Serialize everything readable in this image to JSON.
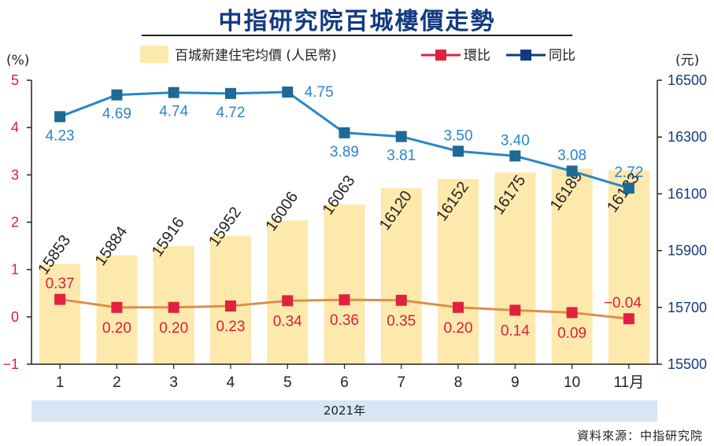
{
  "title": "中指研究院百城樓價走勢",
  "source": "資料來源：中指研究院",
  "year_label": "2021年",
  "left_axis_unit": "(%)",
  "right_axis_unit": "(元)",
  "x_suffix": "月",
  "legend": {
    "bar": "百城新建住宅均價 (人民幣)",
    "mom": "環比",
    "yoy": "同比"
  },
  "colors": {
    "bar": "#fde9ac",
    "mom_line": "#d9914a",
    "mom_marker": "#e0223f",
    "mom_text": "#d61f3c",
    "yoy_line": "#2a86c8",
    "yoy_marker": "#1d6a93",
    "yoy_text": "#2a86c8",
    "left_axis": "#d61f3c",
    "right_axis": "#123a82",
    "title": "#123a82"
  },
  "chart_data": {
    "type": "bar",
    "title": "中指研究院百城樓價走勢",
    "categories": [
      "1",
      "2",
      "3",
      "4",
      "5",
      "6",
      "7",
      "8",
      "9",
      "10",
      "11"
    ],
    "series": [
      {
        "name": "百城新建住宅均價 (人民幣)",
        "type": "bar",
        "axis": "right",
        "values": [
          15853,
          15884,
          15916,
          15952,
          16006,
          16063,
          16120,
          16152,
          16175,
          16189,
          16183
        ],
        "labels": [
          "15853",
          "15884",
          "15916",
          "15952",
          "16006",
          "16063",
          "16120",
          "16152",
          "16175",
          "16189",
          "16183"
        ]
      },
      {
        "name": "同比",
        "type": "line",
        "axis": "left",
        "values": [
          4.23,
          4.69,
          4.74,
          4.72,
          4.75,
          3.89,
          3.81,
          3.5,
          3.4,
          3.08,
          2.72
        ],
        "labels": [
          "4.23",
          "4.69",
          "4.74",
          "4.72",
          "4.75",
          "3.89",
          "3.81",
          "3.50",
          "3.40",
          "3.08",
          "2.72"
        ]
      },
      {
        "name": "環比",
        "type": "line",
        "axis": "left",
        "values": [
          0.37,
          0.2,
          0.2,
          0.23,
          0.34,
          0.36,
          0.35,
          0.2,
          0.14,
          0.09,
          -0.04
        ],
        "labels": [
          "0.37",
          "0.20",
          "0.20",
          "0.23",
          "0.34",
          "0.36",
          "0.35",
          "0.20",
          "0.14",
          "0.09",
          "−0.04"
        ]
      }
    ],
    "ylim_left": [
      -1,
      5
    ],
    "yticks_left": [
      "−1",
      "0",
      "1",
      "2",
      "3",
      "4",
      "5"
    ],
    "ylim_right": [
      15500,
      16500
    ],
    "yticks_right": [
      "15500",
      "15700",
      "15900",
      "16100",
      "16300",
      "16500"
    ],
    "grid": false,
    "legend_position": "top"
  }
}
